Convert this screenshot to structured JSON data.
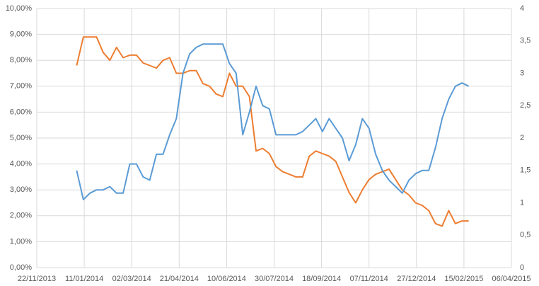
{
  "chart_data": {
    "type": "line",
    "x": [
      "2014-01-03",
      "2014-01-10",
      "2014-01-17",
      "2014-01-24",
      "2014-01-31",
      "2014-02-07",
      "2014-02-14",
      "2014-02-21",
      "2014-02-28",
      "2014-03-07",
      "2014-03-14",
      "2014-03-21",
      "2014-03-28",
      "2014-04-04",
      "2014-04-11",
      "2014-04-18",
      "2014-04-25",
      "2014-05-02",
      "2014-05-09",
      "2014-05-16",
      "2014-05-23",
      "2014-05-30",
      "2014-06-06",
      "2014-06-13",
      "2014-06-20",
      "2014-06-27",
      "2014-07-04",
      "2014-07-11",
      "2014-07-18",
      "2014-07-25",
      "2014-08-01",
      "2014-08-08",
      "2014-08-15",
      "2014-08-22",
      "2014-08-29",
      "2014-09-05",
      "2014-09-12",
      "2014-09-19",
      "2014-09-26",
      "2014-10-03",
      "2014-10-10",
      "2014-10-17",
      "2014-10-24",
      "2014-10-31",
      "2014-11-07",
      "2014-11-14",
      "2014-11-21",
      "2014-11-28",
      "2014-12-05",
      "2014-12-12",
      "2014-12-19",
      "2014-12-26",
      "2015-01-02",
      "2015-01-09",
      "2015-01-16",
      "2015-01-23",
      "2015-01-30",
      "2015-02-06",
      "2015-02-13",
      "2015-02-20"
    ],
    "series": [
      {
        "color": "#ed7d31",
        "axis": "y",
        "values": [
          7.8,
          8.9,
          8.9,
          8.9,
          8.3,
          8.0,
          8.5,
          8.1,
          8.2,
          8.2,
          7.9,
          7.8,
          7.7,
          8.0,
          8.1,
          7.5,
          7.5,
          7.6,
          7.6,
          7.1,
          7.0,
          6.7,
          6.6,
          7.5,
          7.0,
          7.0,
          6.6,
          4.5,
          4.6,
          4.4,
          3.9,
          3.7,
          3.6,
          3.5,
          3.5,
          4.3,
          4.5,
          4.4,
          4.3,
          4.1,
          3.5,
          2.9,
          2.5,
          3.0,
          3.4,
          3.6,
          3.7,
          3.8,
          3.4,
          3.0,
          2.8,
          2.5,
          2.4,
          2.2,
          1.7,
          1.6,
          2.2,
          1.7,
          1.8,
          1.8
        ]
      },
      {
        "color": "#5b9bd5",
        "axis": "y2",
        "values": [
          1.5,
          1.05,
          1.15,
          1.2,
          1.2,
          1.25,
          1.15,
          1.15,
          1.6,
          1.6,
          1.4,
          1.35,
          1.75,
          1.75,
          2.05,
          2.3,
          3.0,
          3.3,
          3.4,
          3.45,
          3.45,
          3.45,
          3.45,
          3.15,
          3.0,
          2.05,
          2.4,
          2.8,
          2.5,
          2.45,
          2.05,
          2.05,
          2.05,
          2.05,
          2.1,
          2.2,
          2.3,
          2.1,
          2.3,
          2.15,
          2.0,
          1.65,
          1.9,
          2.3,
          2.15,
          1.75,
          1.5,
          1.35,
          1.25,
          1.15,
          1.35,
          1.45,
          1.5,
          1.5,
          1.85,
          2.3,
          2.6,
          2.8,
          2.85,
          2.8
        ]
      }
    ],
    "xlim": [
      "2013-11-22",
      "2015-04-06"
    ],
    "xticks": [
      {
        "value": "2013-11-22",
        "label": "22/11/2013"
      },
      {
        "value": "2014-01-11",
        "label": "11/01/2014"
      },
      {
        "value": "2014-03-02",
        "label": "02/03/2014"
      },
      {
        "value": "2014-04-21",
        "label": "21/04/2014"
      },
      {
        "value": "2014-06-10",
        "label": "10/06/2014"
      },
      {
        "value": "2014-07-30",
        "label": "30/07/2014"
      },
      {
        "value": "2014-09-18",
        "label": "18/09/2014"
      },
      {
        "value": "2014-11-07",
        "label": "07/11/2014"
      },
      {
        "value": "2014-12-27",
        "label": "27/12/2014"
      },
      {
        "value": "2015-02-15",
        "label": "15/02/2015"
      },
      {
        "value": "2015-04-06",
        "label": "06/04/2015"
      }
    ],
    "ylim": [
      0,
      10
    ],
    "yticks": [
      {
        "value": 0,
        "label": "0,00%"
      },
      {
        "value": 1,
        "label": "1,00%"
      },
      {
        "value": 2,
        "label": "2,00%"
      },
      {
        "value": 3,
        "label": "3,00%"
      },
      {
        "value": 4,
        "label": "4,00%"
      },
      {
        "value": 5,
        "label": "5,00%"
      },
      {
        "value": 6,
        "label": "6,00%"
      },
      {
        "value": 7,
        "label": "7,00%"
      },
      {
        "value": 8,
        "label": "8,00%"
      },
      {
        "value": 9,
        "label": "9,00%"
      },
      {
        "value": 10,
        "label": "10,00%"
      }
    ],
    "y2lim": [
      0,
      4
    ],
    "y2ticks": [
      0,
      {
        "value": 0.5,
        "label": "0,5"
      },
      1,
      {
        "value": 1.5,
        "label": "1,5"
      },
      2,
      {
        "value": 2.5,
        "label": "2,5"
      },
      3,
      {
        "value": 3.5,
        "label": "3,5"
      },
      4
    ],
    "grid": true
  }
}
